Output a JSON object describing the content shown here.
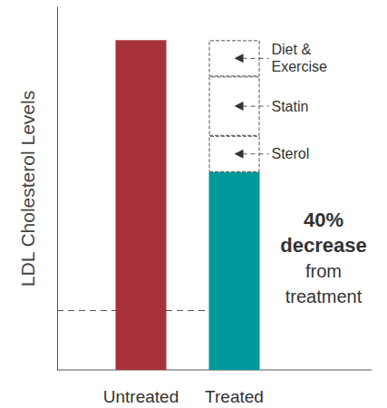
{
  "chart_data": {
    "type": "bar",
    "y_label": "LDL Cholesterol Levels",
    "categories": [
      "Untreated",
      "Treated"
    ],
    "values": [
      100,
      60
    ],
    "colors": [
      "#a8323a",
      "#00999a"
    ],
    "ylim": [
      0,
      110
    ],
    "yticks": [],
    "tick_labels": "x",
    "grid": false,
    "stacked": true,
    "reductions": {
      "category": "Treated",
      "segments": [
        {
          "name": "Sterol",
          "value": 11
        },
        {
          "name": "Statin",
          "value": 18
        },
        {
          "name": "Diet & Exercise",
          "value": 11
        }
      ]
    },
    "reference_line": 18,
    "annotation": [
      "40%",
      "decrease",
      "from",
      "treatment"
    ]
  }
}
